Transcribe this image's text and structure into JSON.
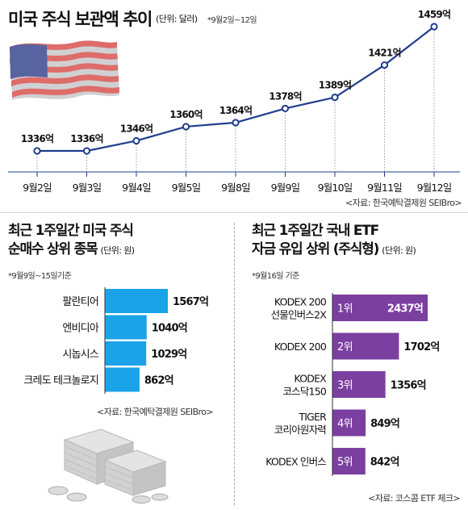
{
  "top_chart": {
    "title": "미국 주식 보관액 추이",
    "unit": "(단위: 달러)",
    "note": "*9월2일~12일",
    "source": "<자료: 한국예탁결제원 SEIBro>"
  },
  "left_chart": {
    "title_line1": "최근 1주일간 미국 주식",
    "title_line2": "순매수 상위 종목",
    "unit": "(단위: 원)",
    "note": "*9월9일~15일기준",
    "source": "<자료: 한국예탁결제원 SEIBro>"
  },
  "right_chart": {
    "title_line1": "최근 1주일간 국내 ETF",
    "title_line2": "자금 유입 상위 (주식형)",
    "unit": "(단위: 원)",
    "note": "*9월16일 기준",
    "source": "<자료: 코스콤 ETF 체크>"
  },
  "chart_data": [
    {
      "type": "line",
      "title": "미국 주식 보관액 추이",
      "categories": [
        "9월2일",
        "9월3일",
        "9월4일",
        "9월5일",
        "9월8일",
        "9월9일",
        "9월10일",
        "9월11일",
        "9월12일"
      ],
      "values": [
        1336,
        1336,
        1346,
        1360,
        1364,
        1378,
        1389,
        1421,
        1459
      ],
      "labels": [
        "1336억",
        "1336억",
        "1346억",
        "1360억",
        "1364억",
        "1378억",
        "1389억",
        "1421억",
        "1459억"
      ],
      "grid": false,
      "color": "#1f3d8c"
    },
    {
      "type": "bar",
      "orientation": "horizontal",
      "title": "최근 1주일간 미국 주식 순매수 상위 종목",
      "categories": [
        "팔란티어",
        "엔비디아",
        "시놉시스",
        "크레도 테크놀로지"
      ],
      "values": [
        1567,
        1040,
        1029,
        862
      ],
      "labels": [
        "1567억",
        "1040억",
        "1029억",
        "862억"
      ],
      "color": "#1aa3e8"
    },
    {
      "type": "bar",
      "orientation": "horizontal",
      "title": "최근 1주일간 국내 ETF 자금 유입 상위 (주식형)",
      "categories": [
        [
          "KODEX 200",
          "선물인버스2X"
        ],
        [
          "KODEX 200"
        ],
        [
          "KODEX",
          "코스닥150"
        ],
        [
          "TIGER",
          "코리아원자력"
        ],
        [
          "KODEX 인버스"
        ]
      ],
      "ranks": [
        "1위",
        "2위",
        "3위",
        "4위",
        "5위"
      ],
      "values": [
        2437,
        1702,
        1356,
        849,
        842
      ],
      "labels": [
        "2437억",
        "1702억",
        "1356억",
        "849억",
        "842억"
      ],
      "color": "#7b3fa0"
    }
  ]
}
